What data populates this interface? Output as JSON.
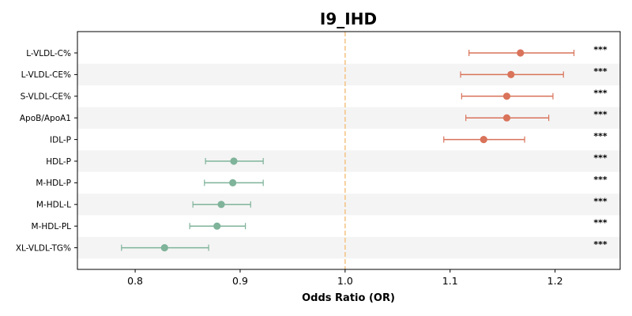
{
  "chart_data": {
    "type": "scatter",
    "title": "I9_IHD",
    "xlabel": "Odds Ratio (OR)",
    "ylabel": "",
    "xlim": [
      0.745,
      1.262
    ],
    "xticks": [
      0.8,
      0.9,
      1.0,
      1.1,
      1.2
    ],
    "xtick_labels": [
      "0.8",
      "0.9",
      "1.0",
      "1.1",
      "1.2"
    ],
    "reference_line": 1.0,
    "reference_line_color": "#f5c58a",
    "band_color": "#f4f4f4",
    "positive_color": "#d9735a",
    "negative_color": "#7fb39a",
    "grid": false,
    "points": [
      {
        "label": "L-VLDL-C%",
        "or": 1.167,
        "lo": 1.118,
        "hi": 1.218,
        "sig": "***"
      },
      {
        "label": "L-VLDL-CE%",
        "or": 1.158,
        "lo": 1.11,
        "hi": 1.208,
        "sig": "***"
      },
      {
        "label": "S-VLDL-CE%",
        "or": 1.154,
        "lo": 1.111,
        "hi": 1.198,
        "sig": "***"
      },
      {
        "label": "ApoB/ApoA1",
        "or": 1.154,
        "lo": 1.115,
        "hi": 1.194,
        "sig": "***"
      },
      {
        "label": "IDL-P",
        "or": 1.132,
        "lo": 1.094,
        "hi": 1.171,
        "sig": "***"
      },
      {
        "label": "HDL-P",
        "or": 0.894,
        "lo": 0.867,
        "hi": 0.922,
        "sig": "***"
      },
      {
        "label": "M-HDL-P",
        "or": 0.893,
        "lo": 0.866,
        "hi": 0.922,
        "sig": "***"
      },
      {
        "label": "M-HDL-L",
        "or": 0.882,
        "lo": 0.855,
        "hi": 0.91,
        "sig": "***"
      },
      {
        "label": "M-HDL-PL",
        "or": 0.878,
        "lo": 0.852,
        "hi": 0.905,
        "sig": "***"
      },
      {
        "label": "XL-VLDL-TG%",
        "or": 0.828,
        "lo": 0.787,
        "hi": 0.87,
        "sig": "***"
      }
    ]
  }
}
